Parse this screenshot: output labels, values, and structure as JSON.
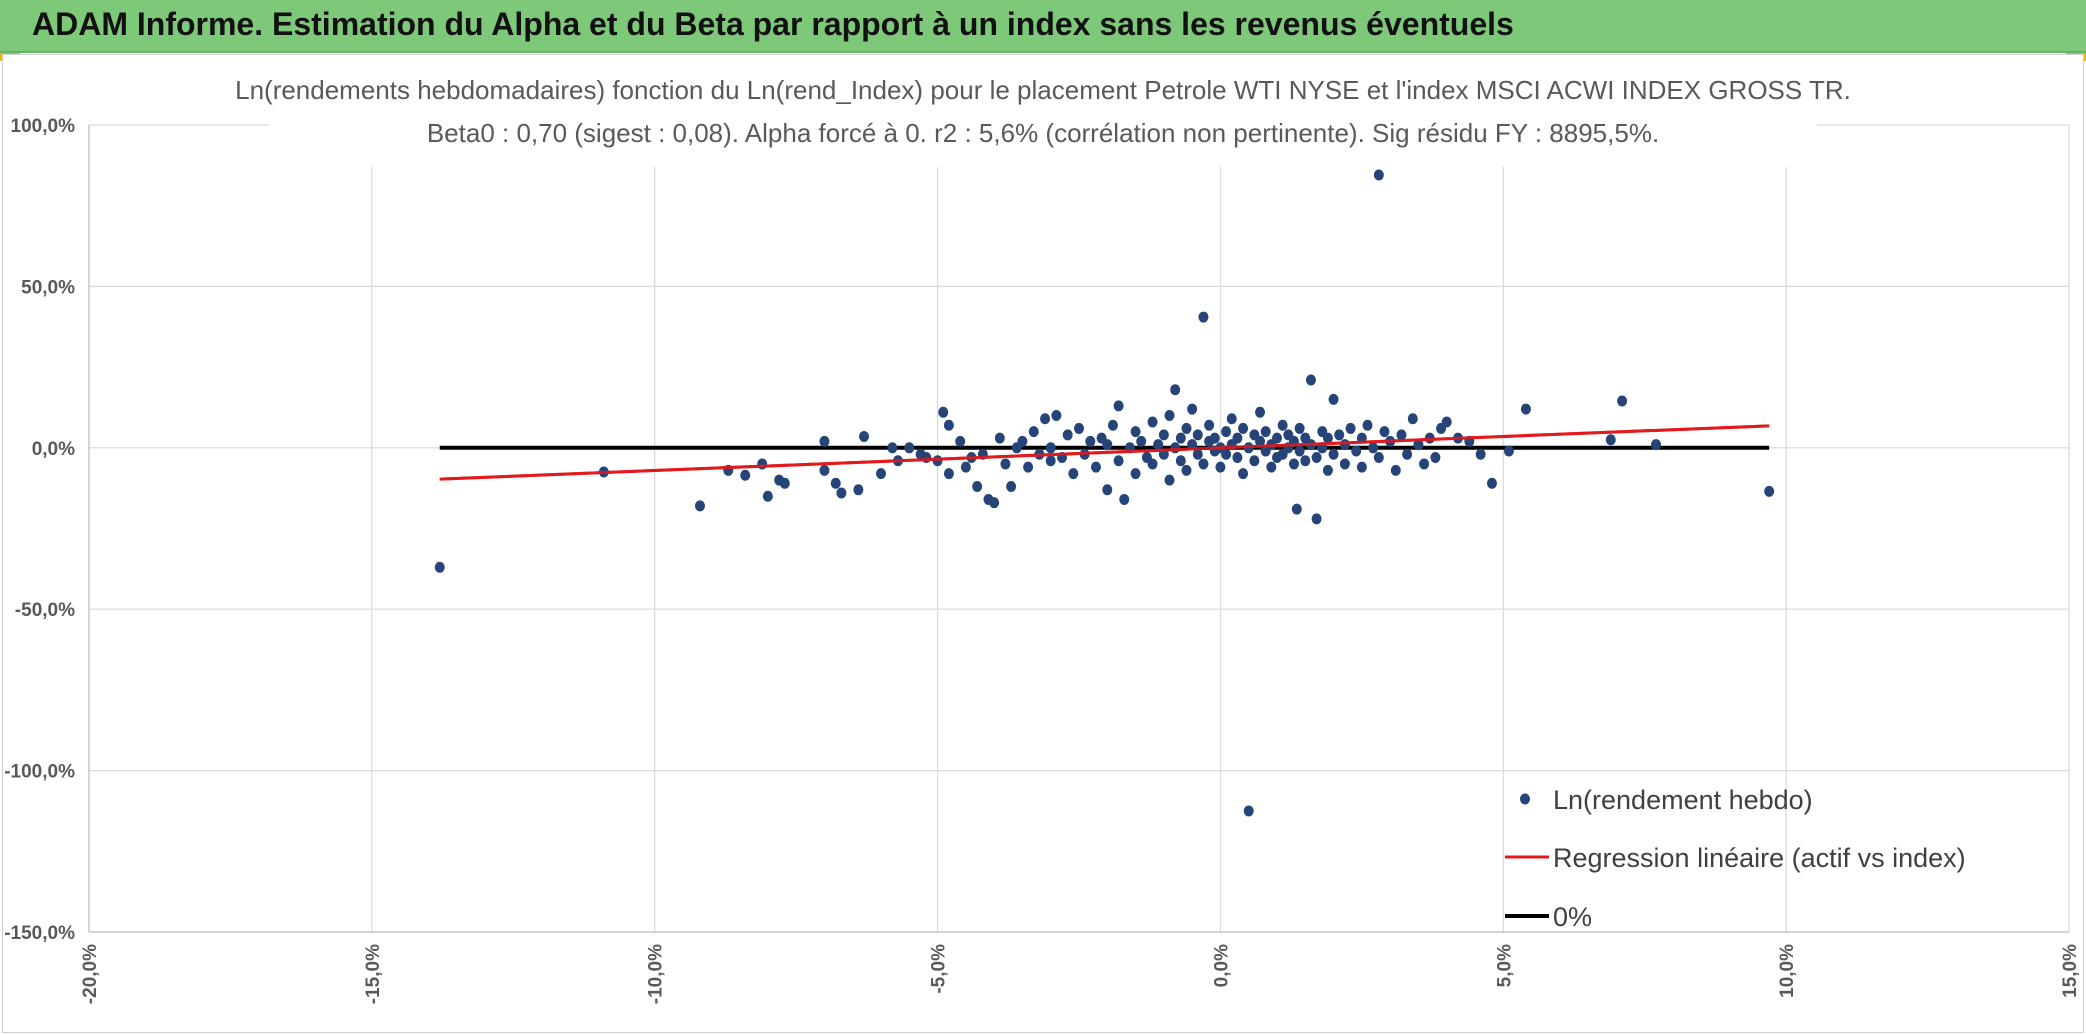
{
  "banner": {
    "title": "ADAM Informe. Estimation du Alpha et du Beta par rapport à un index sans les revenus éventuels",
    "color": "#7ec87a"
  },
  "chart_data": {
    "type": "scatter",
    "title": "Ln(rendements hebdomadaires) fonction du Ln(rend_Index) pour le placement Petrole WTI NYSE et l'index MSCI ACWI INDEX GROSS TR.",
    "subtitle": "Beta0 : 0,70 (sigest : 0,08). Alpha forcé à 0. r2 : 5,6% (corrélation non pertinente). Sig résidu FY : 8895,5%.",
    "xlim": [
      -0.2,
      0.15
    ],
    "ylim": [
      -1.5,
      1.0
    ],
    "x_ticks": [
      "-20,0%",
      "-15,0%",
      "-10,0%",
      "-5,0%",
      "0,0%",
      "5,0%",
      "10,0%",
      "15,0%"
    ],
    "y_ticks": [
      "100,0%",
      "50,0%",
      "0,0%",
      "-50,0%",
      "-100,0%",
      "-150,0%"
    ],
    "grid": true,
    "legend_position": "bottom-right",
    "series": [
      {
        "name": "Ln(rendement hebdo)",
        "kind": "scatter",
        "color": "#264478",
        "points": [
          [
            -0.138,
            -0.37
          ],
          [
            -0.109,
            -0.075
          ],
          [
            -0.092,
            -0.18
          ],
          [
            -0.087,
            -0.07
          ],
          [
            -0.084,
            -0.085
          ],
          [
            -0.081,
            -0.05
          ],
          [
            -0.08,
            -0.15
          ],
          [
            -0.078,
            -0.1
          ],
          [
            -0.077,
            -0.11
          ],
          [
            -0.07,
            0.02
          ],
          [
            -0.07,
            -0.07
          ],
          [
            -0.068,
            -0.11
          ],
          [
            -0.067,
            -0.14
          ],
          [
            -0.064,
            -0.13
          ],
          [
            -0.063,
            0.035
          ],
          [
            -0.06,
            -0.08
          ],
          [
            -0.058,
            0.0
          ],
          [
            -0.057,
            -0.04
          ],
          [
            -0.055,
            0.0
          ],
          [
            -0.053,
            -0.02
          ],
          [
            -0.052,
            -0.03
          ],
          [
            -0.05,
            -0.04
          ],
          [
            -0.049,
            0.11
          ],
          [
            -0.048,
            0.07
          ],
          [
            -0.048,
            -0.08
          ],
          [
            -0.046,
            0.02
          ],
          [
            -0.045,
            -0.06
          ],
          [
            -0.044,
            -0.03
          ],
          [
            -0.043,
            -0.12
          ],
          [
            -0.042,
            -0.02
          ],
          [
            -0.041,
            -0.16
          ],
          [
            -0.04,
            -0.17
          ],
          [
            -0.039,
            0.03
          ],
          [
            -0.038,
            -0.05
          ],
          [
            -0.037,
            -0.12
          ],
          [
            -0.036,
            0.0
          ],
          [
            -0.035,
            0.02
          ],
          [
            -0.034,
            -0.06
          ],
          [
            -0.033,
            0.05
          ],
          [
            -0.032,
            -0.02
          ],
          [
            -0.031,
            0.09
          ],
          [
            -0.03,
            -0.04
          ],
          [
            -0.03,
            0.0
          ],
          [
            -0.029,
            0.1
          ],
          [
            -0.028,
            -0.03
          ],
          [
            -0.027,
            0.04
          ],
          [
            -0.026,
            -0.08
          ],
          [
            -0.025,
            0.06
          ],
          [
            -0.024,
            -0.02
          ],
          [
            -0.023,
            0.02
          ],
          [
            -0.022,
            -0.06
          ],
          [
            -0.021,
            0.03
          ],
          [
            -0.02,
            -0.13
          ],
          [
            -0.02,
            0.01
          ],
          [
            -0.019,
            0.07
          ],
          [
            -0.018,
            -0.04
          ],
          [
            -0.018,
            0.13
          ],
          [
            -0.017,
            -0.16
          ],
          [
            -0.016,
            0.0
          ],
          [
            -0.015,
            0.05
          ],
          [
            -0.015,
            -0.08
          ],
          [
            -0.014,
            0.02
          ],
          [
            -0.013,
            -0.03
          ],
          [
            -0.012,
            0.08
          ],
          [
            -0.012,
            -0.05
          ],
          [
            -0.011,
            0.01
          ],
          [
            -0.01,
            0.04
          ],
          [
            -0.01,
            -0.02
          ],
          [
            -0.009,
            0.1
          ],
          [
            -0.009,
            -0.1
          ],
          [
            -0.008,
            0.0
          ],
          [
            -0.008,
            0.18
          ],
          [
            -0.007,
            -0.04
          ],
          [
            -0.007,
            0.03
          ],
          [
            -0.006,
            0.06
          ],
          [
            -0.006,
            -0.07
          ],
          [
            -0.005,
            0.01
          ],
          [
            -0.005,
            0.12
          ],
          [
            -0.004,
            -0.02
          ],
          [
            -0.004,
            0.04
          ],
          [
            -0.003,
            0.405
          ],
          [
            -0.003,
            -0.05
          ],
          [
            -0.002,
            0.02
          ],
          [
            -0.002,
            0.07
          ],
          [
            -0.001,
            -0.01
          ],
          [
            -0.001,
            0.03
          ],
          [
            0.0,
            0.0
          ],
          [
            0.0,
            -0.06
          ],
          [
            0.001,
            0.05
          ],
          [
            0.001,
            -0.02
          ],
          [
            0.002,
            0.01
          ],
          [
            0.002,
            0.09
          ],
          [
            0.003,
            -0.03
          ],
          [
            0.003,
            0.03
          ],
          [
            0.004,
            -0.08
          ],
          [
            0.004,
            0.06
          ],
          [
            0.005,
            0.0
          ],
          [
            0.005,
            -1.125
          ],
          [
            0.006,
            0.04
          ],
          [
            0.006,
            -0.04
          ],
          [
            0.007,
            0.11
          ],
          [
            0.007,
            0.02
          ],
          [
            0.008,
            -0.01
          ],
          [
            0.008,
            0.05
          ],
          [
            0.009,
            -0.06
          ],
          [
            0.009,
            0.01
          ],
          [
            0.01,
            0.03
          ],
          [
            0.01,
            -0.03
          ],
          [
            0.011,
            0.07
          ],
          [
            0.011,
            -0.02
          ],
          [
            0.012,
            0.0
          ],
          [
            0.012,
            0.04
          ],
          [
            0.013,
            -0.05
          ],
          [
            0.013,
            0.02
          ],
          [
            0.014,
            0.06
          ],
          [
            0.014,
            -0.01
          ],
          [
            0.0135,
            -0.19
          ],
          [
            0.015,
            0.03
          ],
          [
            0.015,
            -0.04
          ],
          [
            0.016,
            0.21
          ],
          [
            0.016,
            0.01
          ],
          [
            0.017,
            -0.22
          ],
          [
            0.017,
            -0.03
          ],
          [
            0.018,
            0.05
          ],
          [
            0.018,
            0.0
          ],
          [
            0.019,
            -0.07
          ],
          [
            0.019,
            0.03
          ],
          [
            0.02,
            0.15
          ],
          [
            0.02,
            -0.02
          ],
          [
            0.021,
            0.04
          ],
          [
            0.022,
            0.01
          ],
          [
            0.022,
            -0.05
          ],
          [
            0.023,
            0.06
          ],
          [
            0.024,
            -0.01
          ],
          [
            0.025,
            0.03
          ],
          [
            0.025,
            -0.06
          ],
          [
            0.026,
            0.07
          ],
          [
            0.027,
            0.0
          ],
          [
            0.028,
            0.845
          ],
          [
            0.028,
            -0.03
          ],
          [
            0.029,
            0.05
          ],
          [
            0.03,
            0.02
          ],
          [
            0.031,
            -0.07
          ],
          [
            0.032,
            0.04
          ],
          [
            0.033,
            -0.02
          ],
          [
            0.034,
            0.09
          ],
          [
            0.035,
            0.01
          ],
          [
            0.036,
            -0.05
          ],
          [
            0.037,
            0.03
          ],
          [
            0.038,
            -0.03
          ],
          [
            0.039,
            0.06
          ],
          [
            0.04,
            0.08
          ],
          [
            0.042,
            0.03
          ],
          [
            0.044,
            0.02
          ],
          [
            0.046,
            -0.02
          ],
          [
            0.048,
            -0.11
          ],
          [
            0.051,
            -0.01
          ],
          [
            0.054,
            0.12
          ],
          [
            0.069,
            0.025
          ],
          [
            0.071,
            0.145
          ],
          [
            0.077,
            0.01
          ],
          [
            0.097,
            -0.135
          ]
        ]
      },
      {
        "name": "Regression linéaire (actif vs index)",
        "kind": "line",
        "color": "#e31a1c",
        "points": [
          [
            -0.138,
            -0.097
          ],
          [
            0.097,
            0.068
          ]
        ]
      },
      {
        "name": "0%",
        "kind": "line",
        "color": "#000000",
        "points": [
          [
            -0.138,
            0.0
          ],
          [
            0.097,
            0.0
          ]
        ]
      }
    ]
  }
}
